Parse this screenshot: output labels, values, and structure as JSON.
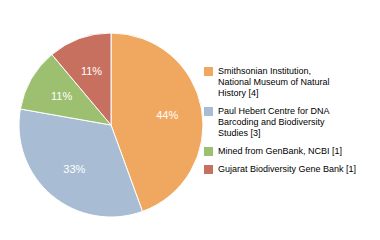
{
  "chart_data": {
    "type": "pie",
    "categories": [
      "Smithsonian Institution,\nNational Museum of Natural\nHistory [4]",
      "Paul Hebert Centre for DNA\nBarcoding and Biodiversity\nStudies [3]",
      "Mined from GenBank, NCBI [1]",
      "Gujarat Biodiversity Gene Bank [1]"
    ],
    "values": [
      44,
      33,
      11,
      11
    ],
    "value_labels": [
      "44%",
      "33%",
      "11%",
      "11%"
    ],
    "colors": [
      "#F0A860",
      "#A8BDD4",
      "#9DC070",
      "#C87060"
    ],
    "data_labels": true,
    "legend": "right"
  }
}
